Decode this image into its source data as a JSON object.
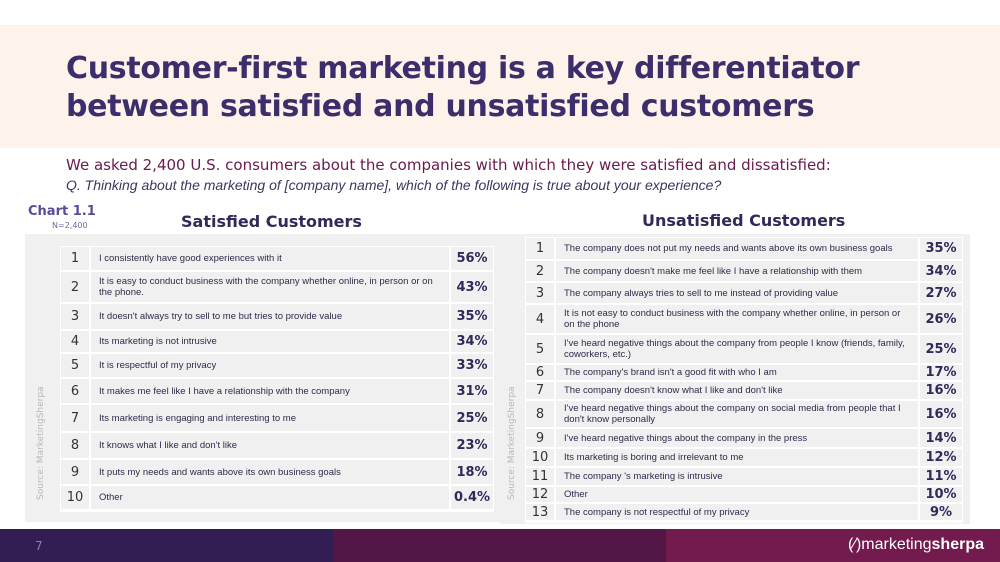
{
  "title_line1": "Customer-first marketing is a key differentiator",
  "title_line2": "between satisfied and unsatisfied customers",
  "subtitle": "We asked 2,400 U.S. consumers about the companies with which they were satisfied and dissatisfied:",
  "question": "Q. Thinking about the marketing of [company name], which of the following is true about your experience?",
  "chart_label": "Chart 1.1",
  "n_label": "N=2,400",
  "source": "Source: MarketingSherpa",
  "page_number": "7",
  "logo": {
    "light": "marketing",
    "bold": "sherpa"
  },
  "satisfied": {
    "heading": "Satisfied Customers",
    "rows": [
      {
        "n": "1",
        "text": "I consistently have good experiences with it",
        "pct": "56%"
      },
      {
        "n": "2",
        "text": "It is easy to conduct business with the company whether online, in person or on the phone.",
        "pct": "43%"
      },
      {
        "n": "3",
        "text": "It doesn't always try to sell to me but tries to provide value",
        "pct": "35%"
      },
      {
        "n": "4",
        "text": "Its marketing is not intrusive",
        "pct": "34%"
      },
      {
        "n": "5",
        "text": "It is respectful of my privacy",
        "pct": "33%"
      },
      {
        "n": "6",
        "text": "It makes me feel like I have a relationship with the company",
        "pct": "31%"
      },
      {
        "n": "7",
        "text": "Its marketing is engaging and interesting to me",
        "pct": "25%"
      },
      {
        "n": "8",
        "text": "It knows what I like and don't like",
        "pct": "23%"
      },
      {
        "n": "9",
        "text": "It puts my needs and wants above its own business goals",
        "pct": "18%"
      },
      {
        "n": "10",
        "text": "Other",
        "pct": "0.4%"
      }
    ]
  },
  "unsatisfied": {
    "heading": "Unsatisfied Customers",
    "rows": [
      {
        "n": "1",
        "text": "The company does not put my needs and wants above its own business goals",
        "pct": "35%"
      },
      {
        "n": "2",
        "text": "The company doesn't make me feel like I have a relationship with them",
        "pct": "34%"
      },
      {
        "n": "3",
        "text": "The company always tries to sell to me instead of providing value",
        "pct": "27%"
      },
      {
        "n": "4",
        "text": "It is not easy to conduct business with the company whether online, in person or on the phone",
        "pct": "26%"
      },
      {
        "n": "5",
        "text": "I've heard negative things about the company from people I know (friends, family, coworkers, etc.)",
        "pct": "25%"
      },
      {
        "n": "6",
        "text": "The company's brand isn't a good fit with who I am",
        "pct": "17%"
      },
      {
        "n": "7",
        "text": "The company doesn't know what I like and don't like",
        "pct": "16%"
      },
      {
        "n": "8",
        "text": "I've heard negative things about the company on social media from people that I don't know personally",
        "pct": "16%"
      },
      {
        "n": "9",
        "text": "I've heard negative things about the company in the press",
        "pct": "14%"
      },
      {
        "n": "10",
        "text": "Its marketing is boring and irrelevant to me",
        "pct": "12%"
      },
      {
        "n": "11",
        "text": "The company 's marketing is intrusive",
        "pct": "11%"
      },
      {
        "n": "12",
        "text": "Other",
        "pct": "10%"
      },
      {
        "n": "13",
        "text": "The company is not respectful of my privacy",
        "pct": "9%"
      }
    ]
  },
  "colors": {
    "footer": [
      "#321e52",
      "#531747",
      "#731b4e"
    ],
    "header_bg": "#fdf3ea",
    "title": "#3c2d6b"
  }
}
